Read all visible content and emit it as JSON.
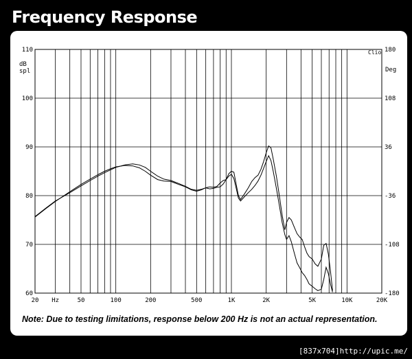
{
  "title": "Frequency Response",
  "note": "Note:  Due to testing limitations, response below 200 Hz is not an actual representation.",
  "footer": "[837x704]http://upic.me/",
  "chart_data": {
    "type": "line",
    "title": "Frequency Response",
    "ylabel_left": "dB spl",
    "ylabel_right": "Deg",
    "corner_label": "Clio",
    "x_scale": "log",
    "xlim": [
      20,
      20000
    ],
    "ylim": [
      60,
      110
    ],
    "ylim_right": [
      -180,
      180
    ],
    "grid": true,
    "x_ticks": [
      {
        "value": 20,
        "label": "20"
      },
      {
        "value": 30,
        "label": "Hz"
      },
      {
        "value": 50,
        "label": "50"
      },
      {
        "value": 100,
        "label": "100"
      },
      {
        "value": 200,
        "label": "200"
      },
      {
        "value": 500,
        "label": "500"
      },
      {
        "value": 1000,
        "label": "1K"
      },
      {
        "value": 2000,
        "label": "2K"
      },
      {
        "value": 5000,
        "label": "5K"
      },
      {
        "value": 10000,
        "label": "10K"
      },
      {
        "value": 20000,
        "label": "20K"
      }
    ],
    "y_ticks": [
      {
        "value": 60,
        "label": "60"
      },
      {
        "value": 70,
        "label": "70"
      },
      {
        "value": 80,
        "label": "80"
      },
      {
        "value": 90,
        "label": "90"
      },
      {
        "value": 100,
        "label": "100"
      },
      {
        "value": 110,
        "label": "110"
      }
    ],
    "y_ticks_right": [
      {
        "value": -180,
        "label": "-180"
      },
      {
        "value": -108,
        "label": "-108"
      },
      {
        "value": -36,
        "label": "-36"
      },
      {
        "value": 36,
        "label": "36"
      },
      {
        "value": 108,
        "label": "108"
      },
      {
        "value": 180,
        "label": "180"
      }
    ],
    "series": [
      {
        "points": [
          [
            20,
            75.6
          ],
          [
            25,
            77.4
          ],
          [
            30,
            78.8
          ],
          [
            40,
            80.8
          ],
          [
            50,
            82.3
          ],
          [
            60,
            83.4
          ],
          [
            70,
            84.3
          ],
          [
            80,
            85.0
          ],
          [
            90,
            85.5
          ],
          [
            100,
            85.9
          ],
          [
            120,
            86.2
          ],
          [
            140,
            86.1
          ],
          [
            160,
            85.7
          ],
          [
            180,
            85.0
          ],
          [
            200,
            84.2
          ],
          [
            230,
            83.3
          ],
          [
            260,
            83.0
          ],
          [
            300,
            82.9
          ],
          [
            350,
            82.3
          ],
          [
            400,
            81.8
          ],
          [
            450,
            81.2
          ],
          [
            500,
            80.9
          ],
          [
            550,
            81.2
          ],
          [
            600,
            81.6
          ],
          [
            650,
            81.8
          ],
          [
            700,
            81.7
          ],
          [
            750,
            81.9
          ],
          [
            800,
            82.6
          ],
          [
            850,
            83.1
          ],
          [
            900,
            83.3
          ],
          [
            950,
            84.0
          ],
          [
            1000,
            84.4
          ],
          [
            1050,
            83.5
          ],
          [
            1100,
            81.5
          ],
          [
            1150,
            79.5
          ],
          [
            1200,
            78.9
          ],
          [
            1300,
            79.8
          ],
          [
            1400,
            80.6
          ],
          [
            1500,
            81.3
          ],
          [
            1600,
            82.1
          ],
          [
            1700,
            83.0
          ],
          [
            1800,
            84.2
          ],
          [
            1900,
            85.6
          ],
          [
            2000,
            87.0
          ],
          [
            2100,
            88.2
          ],
          [
            2200,
            87.2
          ],
          [
            2300,
            85.0
          ],
          [
            2450,
            81.5
          ],
          [
            2600,
            78.0
          ],
          [
            2750,
            74.5
          ],
          [
            2900,
            72.0
          ],
          [
            3000,
            71.0
          ],
          [
            3150,
            71.8
          ],
          [
            3300,
            70.5
          ],
          [
            3500,
            68.2
          ],
          [
            3700,
            66.2
          ],
          [
            3900,
            65.2
          ],
          [
            4100,
            64.2
          ],
          [
            4300,
            63.6
          ],
          [
            4500,
            62.8
          ],
          [
            4700,
            61.9
          ],
          [
            5000,
            61.4
          ],
          [
            5300,
            60.9
          ],
          [
            5600,
            60.5
          ],
          [
            6000,
            60.8
          ],
          [
            6300,
            62.8
          ],
          [
            6600,
            65.3
          ],
          [
            6900,
            64.0
          ],
          [
            7200,
            61.8
          ],
          [
            7500,
            60.2
          ]
        ]
      },
      {
        "points": [
          [
            20,
            75.7
          ],
          [
            25,
            77.5
          ],
          [
            30,
            78.9
          ],
          [
            40,
            80.6
          ],
          [
            50,
            82.0
          ],
          [
            60,
            83.1
          ],
          [
            70,
            84.0
          ],
          [
            80,
            84.7
          ],
          [
            90,
            85.3
          ],
          [
            100,
            85.8
          ],
          [
            120,
            86.3
          ],
          [
            140,
            86.5
          ],
          [
            160,
            86.3
          ],
          [
            180,
            85.8
          ],
          [
            200,
            85.0
          ],
          [
            230,
            84.0
          ],
          [
            260,
            83.4
          ],
          [
            300,
            83.1
          ],
          [
            350,
            82.5
          ],
          [
            400,
            81.9
          ],
          [
            450,
            81.3
          ],
          [
            500,
            81.1
          ],
          [
            550,
            81.3
          ],
          [
            600,
            81.6
          ],
          [
            650,
            81.4
          ],
          [
            700,
            81.5
          ],
          [
            750,
            81.7
          ],
          [
            800,
            81.8
          ],
          [
            850,
            82.4
          ],
          [
            900,
            83.3
          ],
          [
            950,
            84.5
          ],
          [
            1000,
            85.0
          ],
          [
            1050,
            84.8
          ],
          [
            1100,
            82.3
          ],
          [
            1150,
            80.0
          ],
          [
            1200,
            79.2
          ],
          [
            1300,
            80.4
          ],
          [
            1400,
            81.6
          ],
          [
            1500,
            82.9
          ],
          [
            1600,
            83.7
          ],
          [
            1700,
            84.2
          ],
          [
            1800,
            85.4
          ],
          [
            1900,
            87.0
          ],
          [
            2000,
            88.8
          ],
          [
            2100,
            90.2
          ],
          [
            2200,
            89.8
          ],
          [
            2300,
            87.5
          ],
          [
            2450,
            84.0
          ],
          [
            2600,
            80.0
          ],
          [
            2750,
            76.0
          ],
          [
            2900,
            73.0
          ],
          [
            3000,
            74.5
          ],
          [
            3150,
            75.5
          ],
          [
            3300,
            75.0
          ],
          [
            3500,
            73.5
          ],
          [
            3700,
            72.2
          ],
          [
            3900,
            71.5
          ],
          [
            4100,
            71.0
          ],
          [
            4300,
            69.5
          ],
          [
            4500,
            68.2
          ],
          [
            4700,
            67.5
          ],
          [
            5000,
            67.0
          ],
          [
            5300,
            66.0
          ],
          [
            5600,
            65.5
          ],
          [
            6000,
            67.0
          ],
          [
            6300,
            69.8
          ],
          [
            6600,
            70.2
          ],
          [
            6900,
            68.0
          ],
          [
            7200,
            64.5
          ],
          [
            7500,
            60.5
          ]
        ]
      }
    ]
  }
}
